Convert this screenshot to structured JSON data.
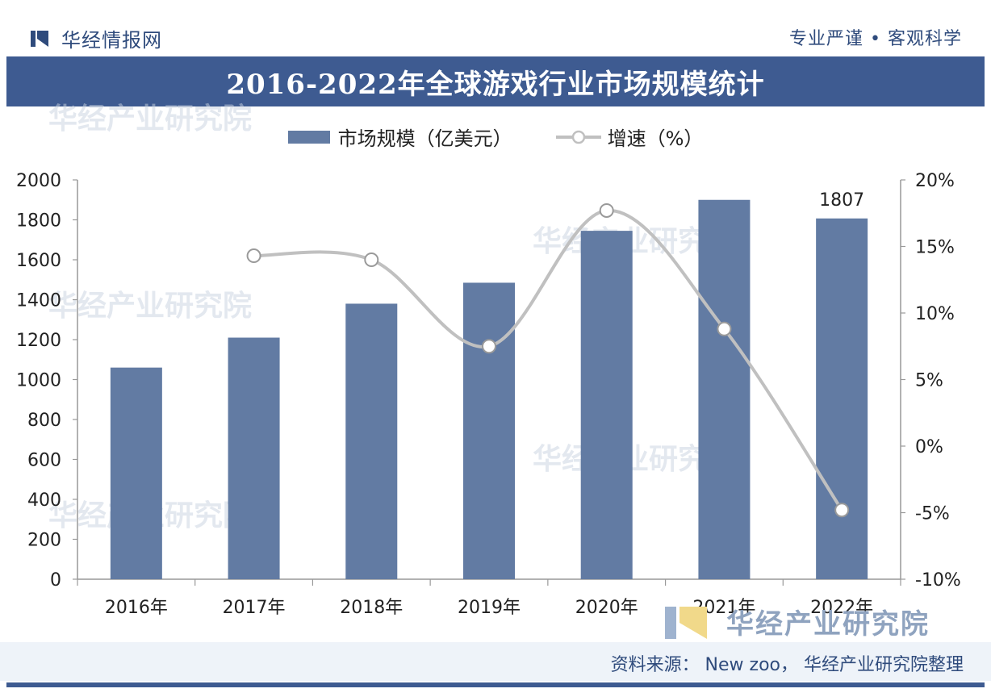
{
  "header": {
    "brand": "华经情报网",
    "tagline": "专业严谨 • 客观科学"
  },
  "title": "2016-2022年全球游戏行业市场规模统计",
  "legend": {
    "bar_label": "市场规模（亿美元）",
    "line_label": "增速（%）"
  },
  "watermark": {
    "text": "华经产业研究院"
  },
  "source": "资料来源： New zoo， 华经产业研究院整理",
  "colors": {
    "bar": "#627ba3",
    "line": "#c0c0c0",
    "title_bg": "#3e5b91",
    "brand": "#2f4b7c"
  },
  "chart_data": {
    "type": "bar",
    "title": "2016-2022年全球游戏行业市场规模统计",
    "categories": [
      "2016年",
      "2017年",
      "2018年",
      "2019年",
      "2020年",
      "2021年",
      "2022年"
    ],
    "series": [
      {
        "name": "市场规模（亿美元）",
        "type": "bar",
        "axis": "left",
        "values": [
          1060,
          1210,
          1380,
          1485,
          1745,
          1900,
          1807
        ]
      },
      {
        "name": "增速（%）",
        "type": "line",
        "axis": "right",
        "values": [
          null,
          14.3,
          14.0,
          7.5,
          17.7,
          8.8,
          -4.8
        ]
      }
    ],
    "data_labels": [
      {
        "category": "2022年",
        "text": "1807"
      }
    ],
    "ylim_left": [
      0,
      2000
    ],
    "yticks_left": [
      "0",
      "200",
      "400",
      "600",
      "800",
      "1000",
      "1200",
      "1400",
      "1600",
      "1800",
      "2000"
    ],
    "ylim_right": [
      -10,
      20
    ],
    "yticks_right": [
      "-10%",
      "-5%",
      "0%",
      "5%",
      "10%",
      "15%",
      "20%"
    ],
    "grid": false,
    "legend_position": "top-center"
  }
}
